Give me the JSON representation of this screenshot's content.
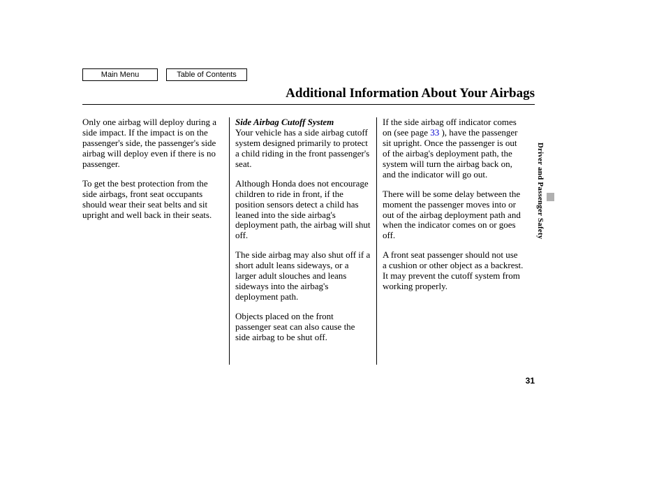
{
  "nav": {
    "main_menu": "Main Menu",
    "toc": "Table of Contents"
  },
  "title": "Additional Information About Your Airbags",
  "section_label": "Driver and Passenger Safety",
  "page_number": "31",
  "col1": {
    "p1": "Only one airbag will deploy during a side impact. If the impact is on the passenger's side, the passenger's side airbag will deploy even if there is no passenger.",
    "p2": "To get the best protection from the side airbags, front seat occupants should wear their seat belts and sit upright and well back in their seats."
  },
  "col2": {
    "subhead": "Side Airbag Cutoff System",
    "p1": "Your vehicle has a side airbag cutoff system designed primarily to protect a child riding in the front passenger's seat.",
    "p2": "Although Honda does not encourage children to ride in front, if the position sensors detect a child has leaned into the side airbag's deployment path, the airbag will shut off.",
    "p3": "The side airbag may also shut off if a short adult leans sideways, or a larger adult slouches and leans sideways into the airbag's deployment path.",
    "p4": "Objects placed on the front passenger seat can also cause the side airbag to be shut off."
  },
  "col3": {
    "p1a": "If the side airbag off indicator comes on (see page ",
    "p1_link": "33",
    "p1b": " ), have the passenger sit upright. Once the passenger is out of the airbag's deployment path, the system will turn the airbag back on, and the indicator will go out.",
    "p2": "There will be some delay between the moment the passenger moves into or out of the airbag deployment path and when the indicator comes on or goes off.",
    "p3": "A front seat passenger should not use a cushion or other object as a backrest. It may prevent the cutoff system from working properly."
  },
  "colors": {
    "link": "#0000cc",
    "tab": "#b0b0b0",
    "text": "#000000",
    "bg": "#ffffff"
  }
}
